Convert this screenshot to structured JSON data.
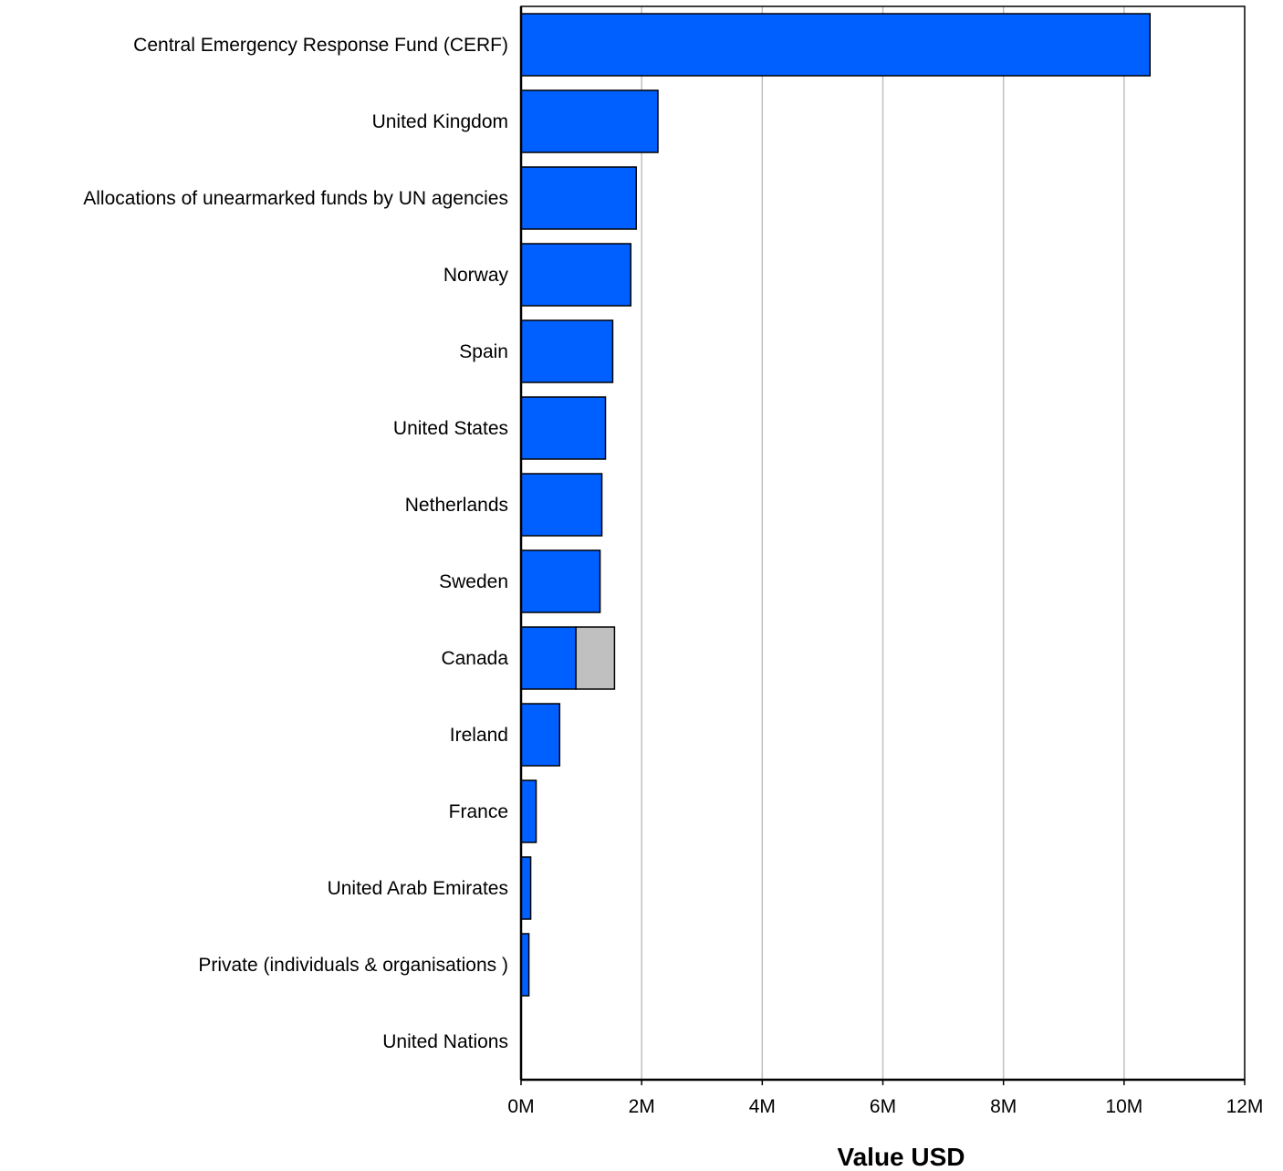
{
  "chart_data": {
    "type": "bar",
    "orientation": "horizontal",
    "stacked": true,
    "categories": [
      "Central Emergency Response Fund  (CERF)",
      "United Kingdom",
      "Allocations of unearmarked funds by UN agencies",
      "Norway",
      "Spain",
      "United States",
      "Netherlands",
      "Sweden",
      "Canada",
      "Ireland",
      "France",
      "United Arab Emirates",
      "Private (individuals & organisations  )",
      "United Nations"
    ],
    "series": [
      {
        "color": "#0060ff",
        "values": [
          10430000,
          2270000,
          1910000,
          1820000,
          1520000,
          1400000,
          1340000,
          1310000,
          910000,
          640000,
          250000,
          160000,
          130000,
          0
        ]
      },
      {
        "color": "#c0c0c0",
        "values": [
          0,
          0,
          0,
          0,
          0,
          0,
          0,
          0,
          640000,
          0,
          0,
          0,
          0,
          0
        ]
      }
    ],
    "xlim": [
      0,
      12000000
    ],
    "xticks": [
      0,
      2000000,
      4000000,
      6000000,
      8000000,
      10000000,
      12000000
    ],
    "xtick_labels": [
      "0M",
      "2M",
      "4M",
      "6M",
      "8M",
      "10M",
      "12M"
    ],
    "xlabel": "Value USD",
    "ylabel": "",
    "title": "",
    "grid": "vertical",
    "legend": "none"
  }
}
